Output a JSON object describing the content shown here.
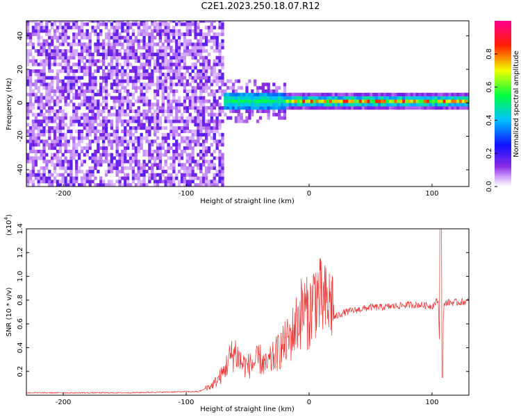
{
  "title": "C2E1.2023.250.18.07.R12",
  "chart_data": [
    {
      "type": "heatmap",
      "xlabel": "Height of straight line (km)",
      "ylabel": "Frequency (Hz)",
      "xlim": [
        -230,
        130
      ],
      "ylim": [
        -50,
        49
      ],
      "xticks": [
        -200,
        -100,
        0,
        100
      ],
      "yticks": [
        -40,
        -20,
        0,
        20,
        40
      ],
      "colorbar": {
        "label": "Normalized spectral amplitude",
        "ticks": [
          "0.0",
          "0.2",
          "0.4",
          "0.6",
          "0.8"
        ],
        "range": [
          0,
          1
        ],
        "colormap": "rainbow (white → purple → blue → cyan → green → yellow → red → magenta)"
      },
      "regions": [
        {
          "x": [
            -230,
            -70
          ],
          "description_level": 0.15
        },
        {
          "x": [
            -70,
            -20
          ],
          "center_freq": 0,
          "level": 0.4
        },
        {
          "x": [
            -20,
            130
          ],
          "center_freq": 0,
          "level": 0.75
        }
      ]
    },
    {
      "type": "line",
      "xlabel": "Height of straight line (km)",
      "ylabel": "SNR (10 * v/v)",
      "yscale_label": "(x10",
      "yscale_exp": "4",
      "yscale_close": ")",
      "xlim": [
        -230,
        130
      ],
      "ylim": [
        0,
        1.4
      ],
      "xticks": [
        -200,
        -100,
        0,
        100
      ],
      "yticks": [
        "0.2",
        "0.4",
        "0.6",
        "0.8",
        "1.0",
        "1.2",
        "1.4"
      ],
      "color": "#e83030",
      "series": [
        {
          "x": [
            -230,
            -200,
            -150,
            -100,
            -90,
            -85,
            -80,
            -75,
            -70,
            -65,
            -60,
            -55,
            -50,
            -45,
            -40,
            -35,
            -30,
            -25,
            -20,
            -15,
            -10,
            -5,
            0,
            5,
            10,
            15,
            20,
            25,
            30,
            40,
            50,
            60,
            70,
            80,
            90,
            100,
            105,
            107,
            110,
            120,
            130
          ],
          "y": [
            0.02,
            0.02,
            0.02,
            0.03,
            0.03,
            0.05,
            0.06,
            0.1,
            0.15,
            0.25,
            0.3,
            0.22,
            0.2,
            0.22,
            0.25,
            0.2,
            0.25,
            0.3,
            0.35,
            0.4,
            0.5,
            0.6,
            0.55,
            0.7,
            0.65,
            0.62,
            0.65,
            0.68,
            0.7,
            0.72,
            0.74,
            0.74,
            0.75,
            0.76,
            0.76,
            0.75,
            0.8,
            0.2,
            0.78,
            0.78,
            0.79
          ]
        }
      ]
    }
  ]
}
